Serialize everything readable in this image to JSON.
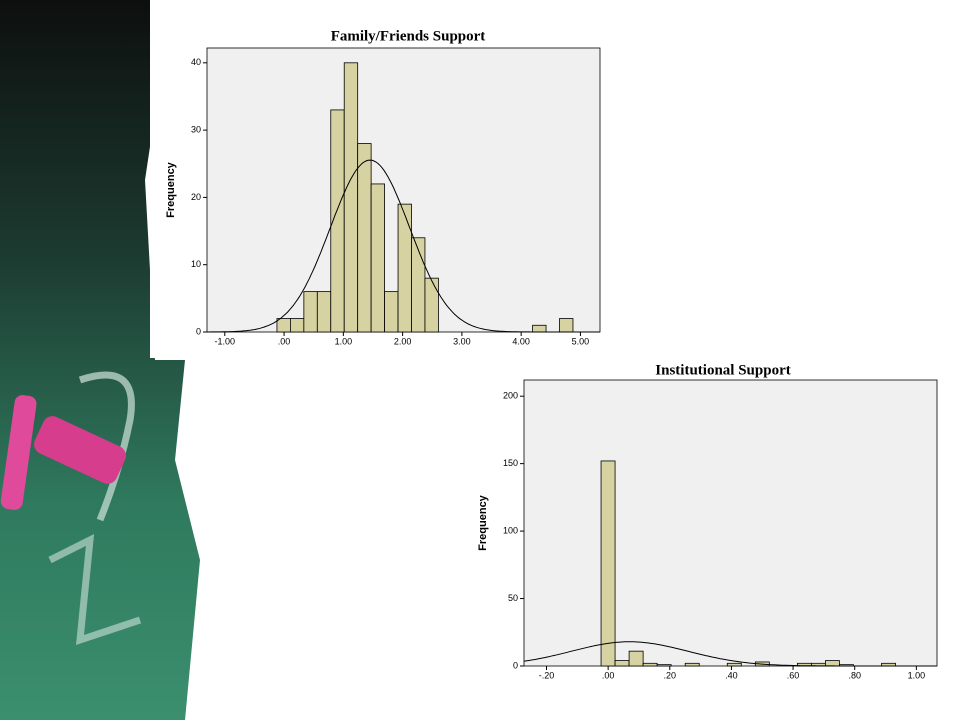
{
  "chart_data": [
    {
      "type": "histogram",
      "title": "Family/Friends Support",
      "ylabel": "Frequency",
      "color": "#d7d2a2",
      "bins": [
        -0.12,
        0.107,
        0.334,
        0.561,
        0.788,
        1.015,
        1.242,
        1.469,
        1.696,
        1.923,
        2.15,
        2.377,
        2.604,
        2.831,
        3.058,
        3.285,
        3.512,
        3.739,
        3.966,
        4.193,
        4.42,
        4.647,
        4.874
      ],
      "counts": [
        2,
        2,
        6,
        6,
        33,
        40,
        28,
        22,
        6,
        19,
        14,
        8,
        0,
        0,
        0,
        0,
        0,
        0,
        0,
        1,
        0,
        2
      ],
      "curve": {
        "mean": 1.45,
        "sd": 0.67
      },
      "xlim": [
        -1.3,
        5.33
      ],
      "ylim": [
        0,
        42.2
      ],
      "xticks": [
        {
          "value": -1,
          "label": "-1.00"
        },
        {
          "value": 0,
          "label": ".00"
        },
        {
          "value": 1,
          "label": "1.00"
        },
        {
          "value": 2,
          "label": "2.00"
        },
        {
          "value": 3,
          "label": "3.00"
        },
        {
          "value": 4,
          "label": "4.00"
        },
        {
          "value": 5,
          "label": "5.00"
        }
      ],
      "yticks": [
        0,
        10,
        20,
        30,
        40
      ]
    },
    {
      "type": "histogram",
      "title": "Institutional Support",
      "ylabel": "Frequency",
      "color": "#d7d2a2",
      "bins": [
        -0.023,
        0.0225,
        0.068,
        0.1135,
        0.159,
        0.2045,
        0.25,
        0.2955,
        0.341,
        0.3865,
        0.432,
        0.4775,
        0.523,
        0.5685,
        0.614,
        0.6595,
        0.705,
        0.7505,
        0.796,
        0.8415,
        0.887,
        0.9325
      ],
      "counts": [
        152,
        4,
        11,
        2,
        1,
        0,
        2,
        0,
        0,
        2,
        0,
        3,
        0,
        0,
        2,
        2,
        4,
        1,
        0,
        0,
        2
      ],
      "curve": {
        "mean": 0.07,
        "sd": 0.19
      },
      "xlim": [
        -0.273,
        1.067
      ],
      "ylim": [
        0,
        212
      ],
      "xticks": [
        {
          "value": -0.2,
          "label": "-.20"
        },
        {
          "value": 0,
          "label": ".00"
        },
        {
          "value": 0.2,
          "label": ".20"
        },
        {
          "value": 0.4,
          "label": ".40"
        },
        {
          "value": 0.6,
          "label": ".60"
        },
        {
          "value": 0.8,
          "label": ".80"
        },
        {
          "value": 1,
          "label": "1.00"
        }
      ],
      "yticks": [
        0,
        50,
        100,
        150,
        200
      ]
    }
  ]
}
